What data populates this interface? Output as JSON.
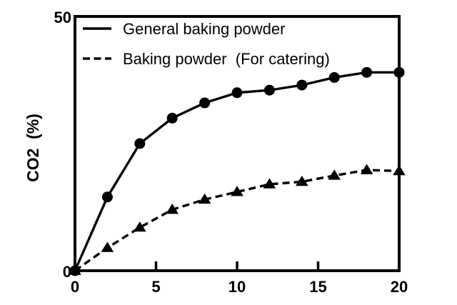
{
  "chart_data": {
    "type": "line",
    "title": "",
    "xlabel": "",
    "ylabel": "CO2  (%)",
    "grid": false,
    "legend_position": "top-left-inside",
    "colors": {
      "foreground": "#000000",
      "background": "#ffffff"
    },
    "x_axis": {
      "min": 0,
      "max": 20,
      "ticks": [
        0,
        5,
        10,
        15,
        20
      ]
    },
    "y_axis": {
      "min": 0,
      "max": 50,
      "ticks": [
        0,
        50
      ]
    },
    "x": [
      0,
      2,
      4,
      6,
      8,
      10,
      12,
      14,
      16,
      18,
      20
    ],
    "series": [
      {
        "name": "General baking powder",
        "line_style": "solid",
        "marker": "circle",
        "values": [
          0,
          14.5,
          25,
          30,
          33,
          35,
          35.5,
          36.5,
          38,
          39,
          39
        ]
      },
      {
        "name": "Baking powder  (For catering)",
        "line_style": "dashed",
        "marker": "triangle",
        "values": [
          0,
          4.5,
          8.5,
          12,
          14,
          15.5,
          17,
          17.5,
          18.7,
          19.8,
          19.6
        ]
      }
    ]
  }
}
